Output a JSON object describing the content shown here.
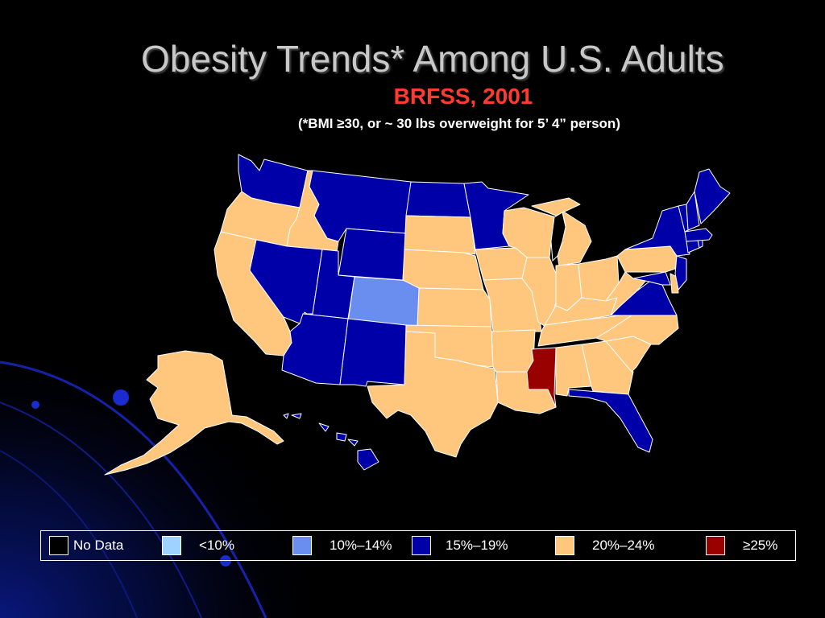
{
  "title": "Obesity Trends* Among U.S. Adults",
  "subtitle": "BRFSS, 2001",
  "note": "(*BMI ≥30, or ~ 30 lbs overweight for 5’ 4” person)",
  "legend": [
    {
      "label": "No Data",
      "color": "#000000"
    },
    {
      "label": "<10%",
      "color": "#9ed3ff"
    },
    {
      "label": "10%–14%",
      "color": "#6a8ef0"
    },
    {
      "label": "15%–19%",
      "color": "#0000a8"
    },
    {
      "label": "20%–24%",
      "color": "#ffc77d"
    },
    {
      "label": "≥25%",
      "color": "#990000"
    }
  ],
  "states": [
    {
      "name": "Washington",
      "category": "15%–19%"
    },
    {
      "name": "Oregon",
      "category": "20%–24%"
    },
    {
      "name": "California",
      "category": "20%–24%"
    },
    {
      "name": "Idaho",
      "category": "20%–24%"
    },
    {
      "name": "Nevada",
      "category": "15%–19%"
    },
    {
      "name": "Montana",
      "category": "15%–19%"
    },
    {
      "name": "Wyoming",
      "category": "15%–19%"
    },
    {
      "name": "Utah",
      "category": "15%–19%"
    },
    {
      "name": "Colorado",
      "category": "10%–14%"
    },
    {
      "name": "Arizona",
      "category": "15%–19%"
    },
    {
      "name": "New Mexico",
      "category": "15%–19%"
    },
    {
      "name": "North Dakota",
      "category": "15%–19%"
    },
    {
      "name": "South Dakota",
      "category": "20%–24%"
    },
    {
      "name": "Nebraska",
      "category": "20%–24%"
    },
    {
      "name": "Kansas",
      "category": "20%–24%"
    },
    {
      "name": "Oklahoma",
      "category": "20%–24%"
    },
    {
      "name": "Texas",
      "category": "20%–24%"
    },
    {
      "name": "Minnesota",
      "category": "15%–19%"
    },
    {
      "name": "Iowa",
      "category": "20%–24%"
    },
    {
      "name": "Missouri",
      "category": "20%–24%"
    },
    {
      "name": "Arkansas",
      "category": "20%–24%"
    },
    {
      "name": "Louisiana",
      "category": "20%–24%"
    },
    {
      "name": "Wisconsin",
      "category": "20%–24%"
    },
    {
      "name": "Illinois",
      "category": "20%–24%"
    },
    {
      "name": "Michigan",
      "category": "20%–24%"
    },
    {
      "name": "Indiana",
      "category": "20%–24%"
    },
    {
      "name": "Ohio",
      "category": "20%–24%"
    },
    {
      "name": "Kentucky",
      "category": "20%–24%"
    },
    {
      "name": "Tennessee",
      "category": "20%–24%"
    },
    {
      "name": "Mississippi",
      "category": "≥25%"
    },
    {
      "name": "Alabama",
      "category": "20%–24%"
    },
    {
      "name": "Georgia",
      "category": "20%–24%"
    },
    {
      "name": "Florida",
      "category": "15%–19%"
    },
    {
      "name": "South Carolina",
      "category": "20%–24%"
    },
    {
      "name": "North Carolina",
      "category": "20%–24%"
    },
    {
      "name": "Virginia",
      "category": "15%–19%"
    },
    {
      "name": "West Virginia",
      "category": "20%–24%"
    },
    {
      "name": "Pennsylvania",
      "category": "20%–24%"
    },
    {
      "name": "New York",
      "category": "15%–19%"
    },
    {
      "name": "Maryland",
      "category": "15%–19%"
    },
    {
      "name": "Delaware",
      "category": "20%–24%"
    },
    {
      "name": "New Jersey",
      "category": "15%–19%"
    },
    {
      "name": "Connecticut",
      "category": "15%–19%"
    },
    {
      "name": "Rhode Island",
      "category": "15%–19%"
    },
    {
      "name": "Massachusetts",
      "category": "15%–19%"
    },
    {
      "name": "Vermont",
      "category": "15%–19%"
    },
    {
      "name": "New Hampshire",
      "category": "15%–19%"
    },
    {
      "name": "Maine",
      "category": "15%–19%"
    },
    {
      "name": "Alaska",
      "category": "20%–24%"
    },
    {
      "name": "Hawaii",
      "category": "15%–19%"
    }
  ]
}
